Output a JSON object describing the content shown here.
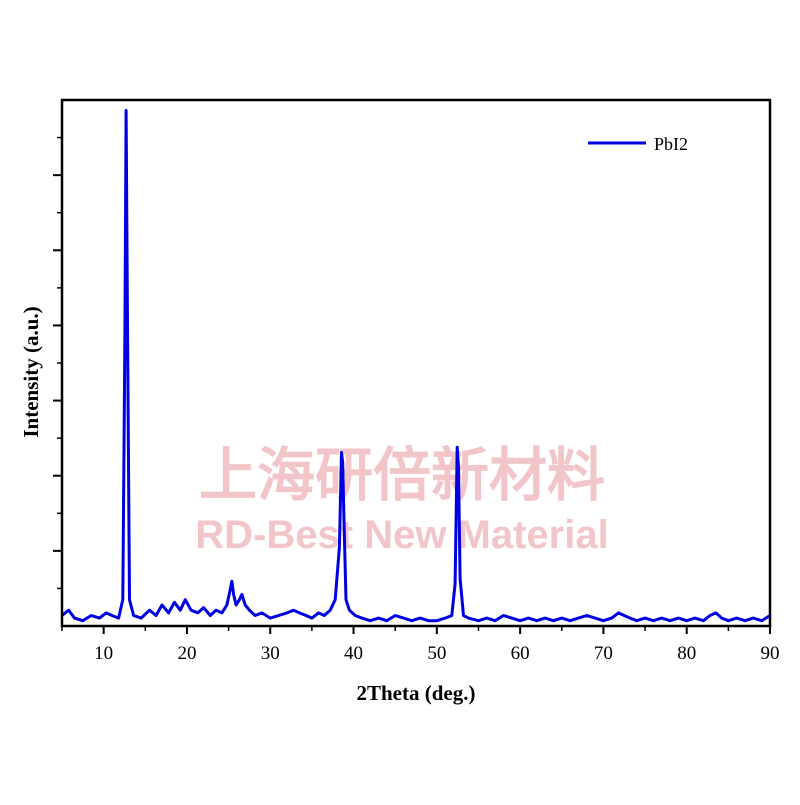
{
  "chart_data": {
    "type": "line",
    "title": "",
    "xlabel": "2Theta (deg.)",
    "ylabel": "Intensity (a.u.)",
    "xlim": [
      5,
      90
    ],
    "ylim": [
      0,
      1
    ],
    "xticks": [
      10,
      20,
      30,
      40,
      50,
      60,
      70,
      80,
      90
    ],
    "yticks_labeled": false,
    "grid": false,
    "legend_position": "top-right",
    "series": [
      {
        "name": "PbI2",
        "color": "#0000e0",
        "x": [
          5.0,
          5.8,
          6.5,
          7.5,
          8.5,
          9.5,
          10.3,
          11.0,
          11.8,
          12.3,
          12.55,
          12.7,
          12.85,
          13.1,
          13.6,
          14.5,
          15.5,
          16.3,
          17.0,
          17.8,
          18.5,
          19.2,
          19.8,
          20.5,
          21.3,
          22.0,
          22.8,
          23.5,
          24.2,
          24.8,
          25.2,
          25.4,
          25.6,
          25.9,
          26.3,
          26.6,
          27.0,
          27.5,
          28.2,
          29.0,
          30.0,
          31.0,
          32.0,
          32.8,
          33.5,
          34.3,
          35.0,
          35.8,
          36.5,
          37.2,
          37.8,
          38.3,
          38.55,
          38.7,
          38.85,
          39.1,
          39.5,
          40.2,
          41.0,
          42.0,
          43.0,
          44.0,
          45.0,
          46.0,
          47.0,
          48.0,
          49.0,
          50.0,
          51.0,
          51.8,
          52.2,
          52.45,
          52.6,
          52.8,
          53.2,
          53.8,
          55.0,
          56.0,
          57.0,
          58.0,
          59.0,
          60.0,
          61.0,
          62.0,
          63.0,
          64.0,
          65.0,
          66.0,
          67.0,
          68.0,
          69.0,
          70.0,
          71.0,
          71.8,
          72.5,
          73.2,
          74.0,
          75.0,
          76.0,
          77.0,
          78.0,
          79.0,
          80.0,
          81.0,
          82.0,
          82.8,
          83.5,
          84.2,
          85.0,
          86.0,
          87.0,
          88.0,
          89.0,
          90.0
        ],
        "y": [
          0.02,
          0.03,
          0.015,
          0.01,
          0.02,
          0.015,
          0.025,
          0.02,
          0.015,
          0.05,
          0.55,
          0.98,
          0.6,
          0.05,
          0.02,
          0.015,
          0.03,
          0.02,
          0.04,
          0.025,
          0.045,
          0.03,
          0.05,
          0.03,
          0.025,
          0.035,
          0.02,
          0.03,
          0.025,
          0.04,
          0.07,
          0.085,
          0.06,
          0.04,
          0.05,
          0.06,
          0.04,
          0.03,
          0.02,
          0.025,
          0.015,
          0.02,
          0.025,
          0.03,
          0.025,
          0.02,
          0.015,
          0.025,
          0.02,
          0.03,
          0.05,
          0.15,
          0.33,
          0.31,
          0.2,
          0.05,
          0.03,
          0.02,
          0.015,
          0.01,
          0.015,
          0.01,
          0.02,
          0.015,
          0.01,
          0.015,
          0.01,
          0.01,
          0.015,
          0.02,
          0.08,
          0.34,
          0.3,
          0.09,
          0.02,
          0.015,
          0.01,
          0.015,
          0.01,
          0.02,
          0.015,
          0.01,
          0.015,
          0.01,
          0.015,
          0.01,
          0.015,
          0.01,
          0.015,
          0.02,
          0.015,
          0.01,
          0.015,
          0.025,
          0.02,
          0.015,
          0.01,
          0.015,
          0.01,
          0.015,
          0.01,
          0.015,
          0.01,
          0.015,
          0.01,
          0.02,
          0.025,
          0.015,
          0.01,
          0.015,
          0.01,
          0.015,
          0.01,
          0.02
        ]
      }
    ]
  },
  "watermark": {
    "chinese": "上海研倍新材料",
    "english": "RD-Best New Material"
  }
}
